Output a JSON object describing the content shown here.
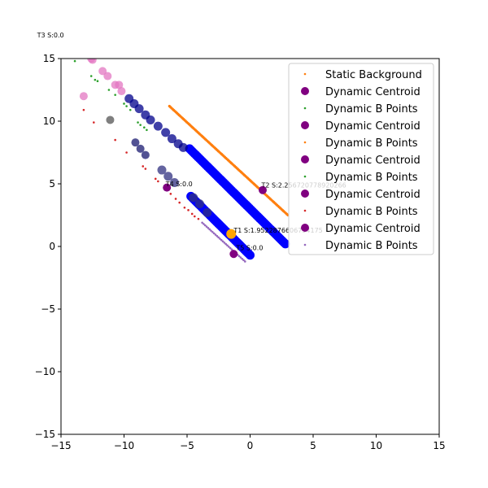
{
  "chart_data": {
    "type": "scatter",
    "title": "",
    "xlabel": "",
    "ylabel": "",
    "xlim": [
      -15,
      15
    ],
    "ylim": [
      -15,
      15
    ],
    "grid": false,
    "xticks": [
      "−15",
      "−10",
      "−5",
      "0",
      "5",
      "10",
      "15"
    ],
    "yticks": [
      "−15",
      "−10",
      "−5",
      "0",
      "5",
      "10",
      "15"
    ],
    "xtick_values": [
      -15,
      -10,
      -5,
      0,
      5,
      10,
      15
    ],
    "ytick_values": [
      -15,
      -10,
      -5,
      0,
      5,
      10,
      15
    ],
    "legend_position": "upper right",
    "legend": [
      {
        "label": "Static Background",
        "color": "#ff7f0e",
        "marker": "dot"
      },
      {
        "label": "Dynamic Centroid",
        "color": "#800080",
        "marker": "circle"
      },
      {
        "label": "Dynamic B Points",
        "color": "#2ca02c",
        "marker": "dot"
      },
      {
        "label": "Dynamic Centroid",
        "color": "#800080",
        "marker": "circle"
      },
      {
        "label": "Dynamic B Points",
        "color": "#ff7f0e",
        "marker": "dot"
      },
      {
        "label": "Dynamic Centroid",
        "color": "#800080",
        "marker": "circle"
      },
      {
        "label": "Dynamic B Points",
        "color": "#2ca02c",
        "marker": "dot"
      },
      {
        "label": "Dynamic Centroid",
        "color": "#800080",
        "marker": "circle"
      },
      {
        "label": "Dynamic B Points",
        "color": "#d62728",
        "marker": "dot"
      },
      {
        "label": "Dynamic Centroid",
        "color": "#800080",
        "marker": "circle"
      },
      {
        "label": "Dynamic B Points",
        "color": "#9467bd",
        "marker": "dot"
      }
    ],
    "annotations": [
      {
        "text": "T3 S:0.0",
        "x": -16.9,
        "y": 16.7
      },
      {
        "text": "T2 S:2.256720778920266",
        "x": 0.9,
        "y": 4.7
      },
      {
        "text": "T4 S:0.0",
        "x": -6.7,
        "y": 4.8
      },
      {
        "text": "T1 S:1.9522876606794175",
        "x": -1.3,
        "y": 1.1
      },
      {
        "text": "T5 S:0.0",
        "x": -1.1,
        "y": -0.3
      }
    ],
    "series": [
      {
        "kind": "static",
        "color": "#ff7f0e",
        "size": 1.6,
        "lines": [
          {
            "x0": -6.4,
            "y0": 11.2,
            "x1": 3.0,
            "y1": 2.5,
            "n": 110
          }
        ]
      },
      {
        "kind": "band",
        "color": "#0000ff",
        "size": 5.5,
        "lines": [
          {
            "x0": -4.8,
            "y0": 7.8,
            "x1": 2.8,
            "y1": 0.2,
            "n": 60
          },
          {
            "x0": -4.7,
            "y0": 4.0,
            "x1": 0.0,
            "y1": -0.7,
            "n": 40
          }
        ]
      },
      {
        "kind": "trail",
        "color": "#00008b",
        "size": 5.5,
        "points": [
          [
            -9.6,
            11.8
          ],
          [
            -9.2,
            11.4
          ],
          [
            -8.8,
            11.0
          ],
          [
            -8.3,
            10.5
          ],
          [
            -7.9,
            10.1
          ],
          [
            -7.3,
            9.6
          ],
          [
            -6.7,
            9.1
          ],
          [
            -6.2,
            8.6
          ],
          [
            -5.7,
            8.2
          ],
          [
            -5.3,
            7.9
          ]
        ]
      },
      {
        "kind": "trail",
        "color": "#191970",
        "size": 5.0,
        "points": [
          [
            -9.1,
            8.3
          ],
          [
            -8.7,
            7.8
          ],
          [
            -8.3,
            7.3
          ]
        ]
      },
      {
        "kind": "trail",
        "color": "#303080",
        "size": 5.5,
        "points": [
          [
            -7.0,
            6.1
          ],
          [
            -6.5,
            5.6
          ],
          [
            -6.0,
            5.1
          ],
          [
            -4.5,
            3.9
          ],
          [
            -4.0,
            3.4
          ],
          [
            -3.4,
            2.7
          ]
        ]
      },
      {
        "kind": "trail",
        "color": "#e377c2",
        "size": 5.0,
        "points": [
          [
            -12.6,
            15.0
          ],
          [
            -12.5,
            14.9
          ],
          [
            -11.7,
            14.0
          ],
          [
            -11.3,
            13.6
          ],
          [
            -10.7,
            12.9
          ],
          [
            -10.4,
            12.9
          ],
          [
            -10.2,
            12.4
          ],
          [
            -13.2,
            12.0
          ]
        ]
      },
      {
        "kind": "single",
        "color": "#7f7f7f",
        "size": 5.0,
        "points": [
          [
            -11.1,
            10.1
          ]
        ]
      },
      {
        "kind": "bpoints",
        "color": "#2ca02c",
        "size": 1.3,
        "points": [
          [
            -13.9,
            14.8
          ],
          [
            -12.6,
            13.6
          ],
          [
            -12.3,
            13.3
          ],
          [
            -12.1,
            13.2
          ],
          [
            -11.2,
            12.5
          ],
          [
            -10.7,
            12.1
          ],
          [
            -10.0,
            11.4
          ],
          [
            -9.8,
            11.2
          ],
          [
            -9.5,
            10.9
          ],
          [
            -8.9,
            9.9
          ],
          [
            -8.7,
            9.7
          ],
          [
            -8.4,
            9.5
          ],
          [
            -8.2,
            9.3
          ]
        ]
      },
      {
        "kind": "bpoints",
        "color": "#d62728",
        "size": 1.3,
        "points": [
          [
            -13.2,
            10.9
          ],
          [
            -12.4,
            9.9
          ],
          [
            -10.7,
            8.5
          ],
          [
            -9.8,
            7.5
          ],
          [
            -8.5,
            6.4
          ],
          [
            -8.3,
            6.2
          ],
          [
            -7.5,
            5.4
          ],
          [
            -7.3,
            5.2
          ],
          [
            -6.7,
            4.6
          ],
          [
            -6.3,
            4.2
          ],
          [
            -5.9,
            3.8
          ],
          [
            -5.6,
            3.5
          ],
          [
            -5.2,
            3.1
          ],
          [
            -4.9,
            2.9
          ],
          [
            -4.6,
            2.6
          ],
          [
            -4.4,
            2.4
          ],
          [
            -4.1,
            2.2
          ]
        ]
      },
      {
        "kind": "bline",
        "color": "#9467bd",
        "size": 1.3,
        "lines": [
          {
            "x0": -3.8,
            "y0": 1.9,
            "x1": -0.4,
            "y1": -1.2,
            "n": 30
          }
        ]
      },
      {
        "kind": "centroid",
        "color": "#800080",
        "size": 5.0,
        "points": [
          [
            1.0,
            4.5
          ],
          [
            -6.6,
            4.7
          ],
          [
            -1.3,
            -0.6
          ]
        ]
      },
      {
        "kind": "highlight",
        "color": "#ffa500",
        "size": 6.0,
        "points": [
          [
            -1.5,
            1.0
          ]
        ]
      }
    ]
  }
}
